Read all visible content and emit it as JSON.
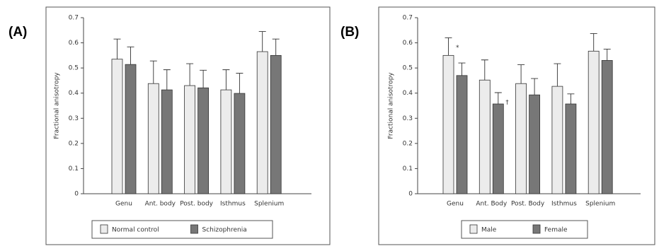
{
  "chart_data": [
    {
      "type": "bar",
      "panel": "(A)",
      "ylabel": "Fractional anisotropy",
      "categories": [
        "Genu",
        "Ant. body",
        "Post. body",
        "Isthmus",
        "Splenium"
      ],
      "series": [
        {
          "name": "Normal control",
          "color": "#ececec",
          "values": [
            0.535,
            0.438,
            0.43,
            0.413,
            0.565
          ],
          "errors": [
            0.08,
            0.09,
            0.087,
            0.08,
            0.08
          ]
        },
        {
          "name": "Schizophrenia",
          "color": "#777777",
          "values": [
            0.514,
            0.413,
            0.421,
            0.399,
            0.55
          ],
          "errors": [
            0.07,
            0.08,
            0.07,
            0.08,
            0.065
          ]
        }
      ],
      "ylim": [
        0,
        0.7
      ],
      "yticks": [
        0,
        0.1,
        0.2,
        0.3,
        0.4,
        0.5,
        0.6,
        0.7
      ],
      "legend": "bottom"
    },
    {
      "type": "bar",
      "panel": "(B)",
      "ylabel": "Fractional anisotropy",
      "categories": [
        "Genu",
        "Ant. Body",
        "Post. Body",
        "Isthmus",
        "Splenium"
      ],
      "series": [
        {
          "name": "Male",
          "color": "#ececec",
          "values": [
            0.55,
            0.452,
            0.438,
            0.427,
            0.567
          ],
          "errors": [
            0.07,
            0.08,
            0.075,
            0.09,
            0.07
          ]
        },
        {
          "name": "Female",
          "color": "#777777",
          "values": [
            0.47,
            0.357,
            0.393,
            0.357,
            0.53
          ],
          "errors": [
            0.05,
            0.045,
            0.065,
            0.04,
            0.045
          ]
        }
      ],
      "ylim": [
        0,
        0.7
      ],
      "yticks": [
        0,
        0.1,
        0.2,
        0.3,
        0.4,
        0.5,
        0.6,
        0.7
      ],
      "legend": "bottom",
      "annotations": [
        {
          "text": "*",
          "category": "Genu",
          "series": "Male"
        },
        {
          "text": "†",
          "category": "Ant. Body",
          "series": "Female"
        }
      ]
    }
  ]
}
